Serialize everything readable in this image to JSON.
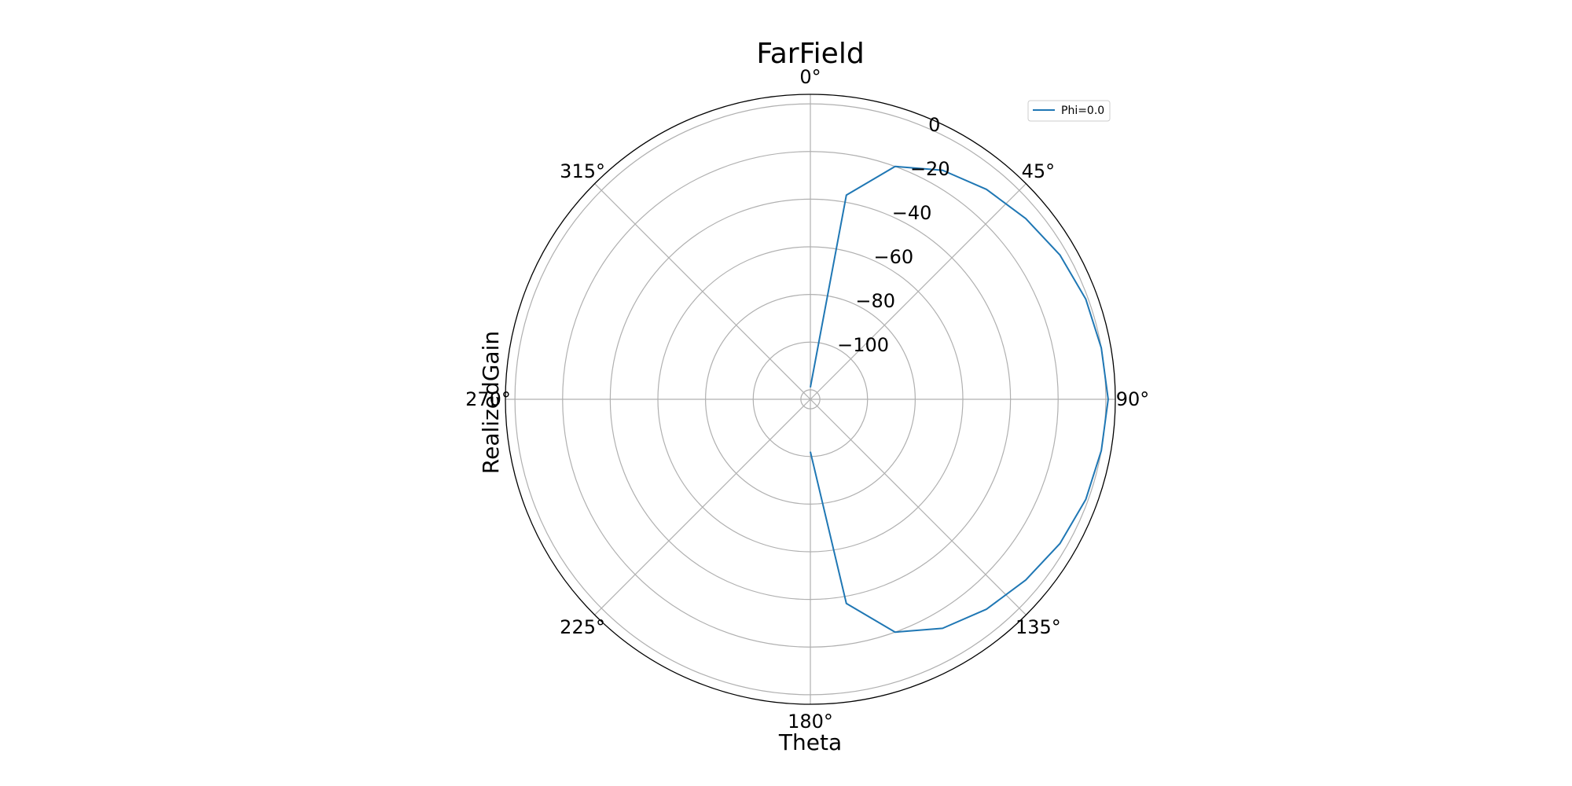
{
  "chart_data": {
    "type": "line",
    "projection": "polar",
    "title": "FarField",
    "xlabel": "Theta",
    "ylabel": "RealizedGain",
    "theta_direction": "clockwise",
    "theta_zero": "top",
    "theta_ticks": [
      {
        "deg": 0,
        "label": "0°"
      },
      {
        "deg": 45,
        "label": "45°"
      },
      {
        "deg": 90,
        "label": "90°"
      },
      {
        "deg": 135,
        "label": "135°"
      },
      {
        "deg": 180,
        "label": "180°"
      },
      {
        "deg": 225,
        "label": "225°"
      },
      {
        "deg": 270,
        "label": "270°"
      },
      {
        "deg": 315,
        "label": "315°"
      }
    ],
    "r_ticks": [
      {
        "value": 0,
        "label": "0"
      },
      {
        "value": -20,
        "label": "−20"
      },
      {
        "value": -40,
        "label": "−40"
      },
      {
        "value": -60,
        "label": "−60"
      },
      {
        "value": -80,
        "label": "−80"
      },
      {
        "value": -100,
        "label": "−100"
      }
    ],
    "r_grid_values": [
      -120,
      -100,
      -80,
      -60,
      -40,
      -20,
      0
    ],
    "rlim": [
      -124,
      4
    ],
    "grid": true,
    "legend_position": "top-right",
    "series": [
      {
        "name": "Phi=0.0",
        "color": "#1f77b4",
        "theta_deg": [
          0,
          10,
          20,
          30,
          40,
          50,
          60,
          70,
          80,
          90,
          100,
          110,
          120,
          130,
          140,
          150,
          160,
          170,
          180
        ],
        "r": [
          -119,
          -37,
          -20,
          -13,
          -9,
          -6,
          -3,
          -1,
          0,
          1,
          0,
          -1,
          -3,
          -6,
          -9,
          -13,
          -20,
          -37,
          -102
        ]
      }
    ]
  }
}
